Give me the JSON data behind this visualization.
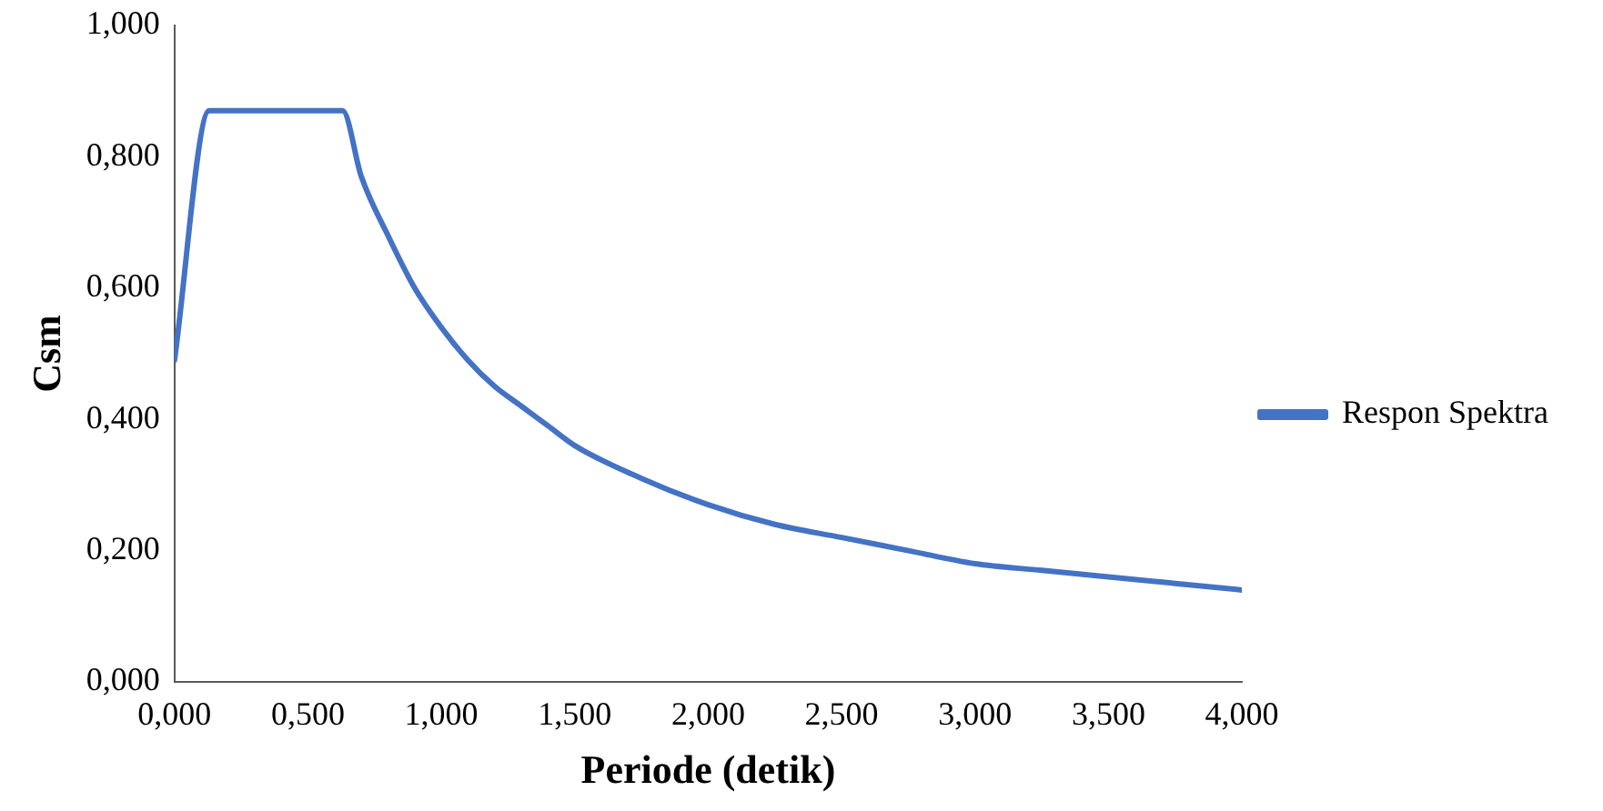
{
  "chart_data": {
    "type": "line",
    "xlabel": "Periode (detik)",
    "ylabel": "Csm",
    "x": [
      0,
      0.13,
      0.63,
      0.7,
      0.8,
      0.9,
      1.0,
      1.1,
      1.2,
      1.3,
      1.4,
      1.5,
      1.75,
      2.0,
      2.25,
      2.5,
      2.75,
      3.0,
      3.25,
      3.5,
      3.75,
      4.0
    ],
    "series": [
      {
        "name": "Respon Spektra",
        "color": "#4472c4",
        "values": [
          0.49,
          0.87,
          0.87,
          0.77,
          0.68,
          0.6,
          0.54,
          0.49,
          0.45,
          0.42,
          0.39,
          0.36,
          0.31,
          0.27,
          0.24,
          0.22,
          0.2,
          0.18,
          0.17,
          0.16,
          0.15,
          0.14
        ]
      }
    ],
    "xlim": [
      0,
      4
    ],
    "ylim": [
      0,
      1
    ],
    "xticks": [
      {
        "value": 0,
        "label": "0,000"
      },
      {
        "value": 0.5,
        "label": "0,500"
      },
      {
        "value": 1,
        "label": "1,000"
      },
      {
        "value": 1.5,
        "label": "1,500"
      },
      {
        "value": 2,
        "label": "2,000"
      },
      {
        "value": 2.5,
        "label": "2,500"
      },
      {
        "value": 3,
        "label": "3,000"
      },
      {
        "value": 3.5,
        "label": "3,500"
      },
      {
        "value": 4,
        "label": "4,000"
      }
    ],
    "yticks": [
      {
        "value": 0,
        "label": "0,000"
      },
      {
        "value": 0.2,
        "label": "0,200"
      },
      {
        "value": 0.4,
        "label": "0,400"
      },
      {
        "value": 0.6,
        "label": "0,600"
      },
      {
        "value": 0.8,
        "label": "0,800"
      },
      {
        "value": 1,
        "label": "1,000"
      }
    ],
    "grid": false,
    "legend": "right",
    "marker": "none",
    "line_style": "solid"
  }
}
